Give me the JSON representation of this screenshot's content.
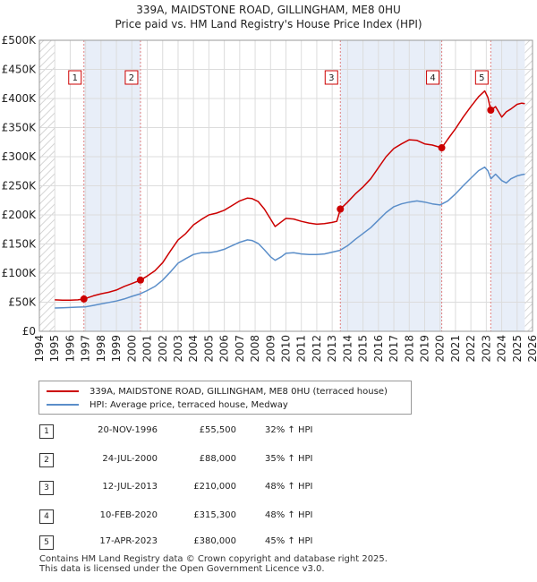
{
  "chart_data": {
    "type": "line",
    "title": "339A, MAIDSTONE ROAD, GILLINGHAM, ME8 0HU",
    "subtitle": "Price paid vs. HM Land Registry's House Price Index (HPI)",
    "xlabel": "",
    "ylabel": "",
    "xlim": [
      1994,
      2026
    ],
    "ylim": [
      0,
      500000
    ],
    "x_ticks": [
      "1994",
      "1995",
      "1996",
      "1997",
      "1998",
      "1999",
      "2000",
      "2001",
      "2002",
      "2003",
      "2004",
      "2005",
      "2006",
      "2007",
      "2008",
      "2009",
      "2010",
      "2011",
      "2012",
      "2013",
      "2014",
      "2015",
      "2016",
      "2017",
      "2018",
      "2019",
      "2020",
      "2021",
      "2022",
      "2023",
      "2024",
      "2025",
      "2026"
    ],
    "y_ticks": [
      {
        "value": 0,
        "label": "£0"
      },
      {
        "value": 50000,
        "label": "£50K"
      },
      {
        "value": 100000,
        "label": "£100K"
      },
      {
        "value": 150000,
        "label": "£150K"
      },
      {
        "value": 200000,
        "label": "£200K"
      },
      {
        "value": 250000,
        "label": "£250K"
      },
      {
        "value": 300000,
        "label": "£300K"
      },
      {
        "value": 350000,
        "label": "£350K"
      },
      {
        "value": 400000,
        "label": "£400K"
      },
      {
        "value": 450000,
        "label": "£450K"
      },
      {
        "value": 500000,
        "label": "£500K"
      }
    ],
    "series": [
      {
        "name": "339A, MAIDSTONE ROAD, GILLINGHAM, ME8 0HU (terraced house)",
        "color": "#cc0000",
        "x": [
          1995.0,
          1995.5,
          1996.0,
          1996.5,
          1996.89,
          1997.5,
          1998.0,
          1998.5,
          1999.0,
          1999.5,
          2000.0,
          2000.56,
          2001.0,
          2001.5,
          2002.0,
          2002.5,
          2003.0,
          2003.5,
          2004.0,
          2004.5,
          2005.0,
          2005.5,
          2006.0,
          2006.5,
          2007.0,
          2007.5,
          2007.8,
          2008.2,
          2008.6,
          2009.0,
          2009.3,
          2009.7,
          2010.0,
          2010.5,
          2011.0,
          2011.5,
          2012.0,
          2012.5,
          2013.0,
          2013.3,
          2013.53,
          2014.0,
          2014.5,
          2015.0,
          2015.5,
          2016.0,
          2016.5,
          2017.0,
          2017.5,
          2018.0,
          2018.5,
          2019.0,
          2019.5,
          2020.11,
          2020.5,
          2021.0,
          2021.5,
          2022.0,
          2022.5,
          2022.9,
          2023.1,
          2023.29,
          2023.6,
          2024.0,
          2024.3,
          2024.6,
          2025.0,
          2025.3,
          2025.5
        ],
        "y": [
          54000,
          53500,
          53500,
          54000,
          55500,
          61000,
          64500,
          67000,
          71000,
          77000,
          82000,
          88000,
          95000,
          104000,
          118000,
          138000,
          157000,
          168000,
          183000,
          192000,
          200000,
          203000,
          208000,
          216000,
          224000,
          229000,
          228000,
          223000,
          210000,
          193000,
          180000,
          188000,
          194000,
          193000,
          189000,
          186000,
          184000,
          185000,
          187000,
          189000,
          210000,
          222000,
          236000,
          248000,
          262000,
          281000,
          300000,
          314000,
          322000,
          329000,
          328000,
          322000,
          320000,
          315300,
          330000,
          348000,
          368000,
          386000,
          403000,
          413000,
          402000,
          380000,
          386000,
          368000,
          377000,
          382000,
          390000,
          392000,
          391000
        ]
      },
      {
        "name": "HPI: Average price, terraced house, Medway",
        "color": "#5b8ec9",
        "x": [
          1995.0,
          1995.5,
          1996.0,
          1996.5,
          1997.0,
          1997.5,
          1998.0,
          1998.5,
          1999.0,
          1999.5,
          2000.0,
          2000.5,
          2001.0,
          2001.5,
          2002.0,
          2002.5,
          2003.0,
          2003.5,
          2004.0,
          2004.5,
          2005.0,
          2005.5,
          2006.0,
          2006.5,
          2007.0,
          2007.5,
          2007.8,
          2008.2,
          2008.6,
          2009.0,
          2009.3,
          2009.7,
          2010.0,
          2010.5,
          2011.0,
          2011.5,
          2012.0,
          2012.5,
          2013.0,
          2013.5,
          2014.0,
          2014.5,
          2015.0,
          2015.5,
          2016.0,
          2016.5,
          2017.0,
          2017.5,
          2018.0,
          2018.5,
          2019.0,
          2019.5,
          2020.0,
          2020.5,
          2021.0,
          2021.5,
          2022.0,
          2022.5,
          2022.9,
          2023.1,
          2023.3,
          2023.6,
          2024.0,
          2024.3,
          2024.6,
          2025.0,
          2025.3,
          2025.5
        ],
        "y": [
          40000,
          40500,
          41000,
          41500,
          42000,
          44500,
          47000,
          49500,
          52000,
          55500,
          60000,
          64000,
          70000,
          77000,
          88000,
          102000,
          117000,
          125000,
          132000,
          135000,
          135000,
          137000,
          141000,
          147000,
          153000,
          157000,
          156000,
          151000,
          140000,
          128000,
          122000,
          128000,
          134000,
          135000,
          133000,
          132000,
          132000,
          133000,
          136000,
          139000,
          147000,
          158000,
          168000,
          178000,
          191000,
          204000,
          214000,
          219000,
          222000,
          224000,
          222000,
          219000,
          217000,
          224000,
          236000,
          250000,
          263000,
          276000,
          282000,
          276000,
          262000,
          270000,
          259000,
          255000,
          262000,
          267000,
          269000,
          270000
        ]
      }
    ],
    "sales": [
      {
        "num": "1",
        "x": 1996.89,
        "y": 55500
      },
      {
        "num": "2",
        "x": 2000.56,
        "y": 88000
      },
      {
        "num": "3",
        "x": 2013.53,
        "y": 210000
      },
      {
        "num": "4",
        "x": 2020.11,
        "y": 315300
      },
      {
        "num": "5",
        "x": 2023.29,
        "y": 380000
      }
    ],
    "shaded_periods": [
      {
        "from": 1996.89,
        "to": 2000.56
      },
      {
        "from": 2013.53,
        "to": 2020.11
      },
      {
        "from": 2023.29,
        "to": 2025.5
      }
    ],
    "hatched_periods": [
      {
        "from": 1994.0,
        "to": 1995.0
      },
      {
        "from": 2025.5,
        "to": 2026.0
      }
    ]
  },
  "legend": {
    "property_label": "339A, MAIDSTONE ROAD, GILLINGHAM, ME8 0HU (terraced house)",
    "hpi_label": "HPI: Average price, terraced house, Medway",
    "property_color": "#cc0000",
    "hpi_color": "#5b8ec9"
  },
  "sales_table": [
    {
      "num": "1",
      "date": "20-NOV-1996",
      "price": "£55,500",
      "hpi": "32% ↑ HPI"
    },
    {
      "num": "2",
      "date": "24-JUL-2000",
      "price": "£88,000",
      "hpi": "35% ↑ HPI"
    },
    {
      "num": "3",
      "date": "12-JUL-2013",
      "price": "£210,000",
      "hpi": "48% ↑ HPI"
    },
    {
      "num": "4",
      "date": "10-FEB-2020",
      "price": "£315,300",
      "hpi": "48% ↑ HPI"
    },
    {
      "num": "5",
      "date": "17-APR-2023",
      "price": "£380,000",
      "hpi": "45% ↑ HPI"
    }
  ],
  "footer": {
    "line1": "Contains HM Land Registry data © Crown copyright and database right 2025.",
    "line2": "This data is licensed under the Open Government Licence v3.0."
  }
}
